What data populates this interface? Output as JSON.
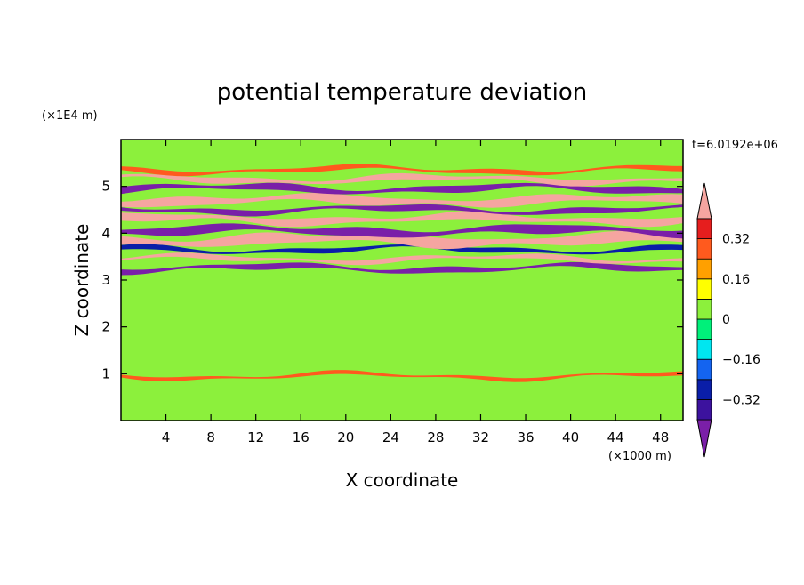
{
  "chart_data": {
    "type": "heatmap",
    "title": "potential temperature deviation",
    "xlabel": "X coordinate",
    "ylabel": "Z coordinate",
    "x_unit": "(×1000 m)",
    "y_unit": "(×1E4 m)",
    "time_label": "t=6.0192e+06",
    "xlim": [
      0,
      50
    ],
    "ylim": [
      0,
      6
    ],
    "x_ticks": [
      4,
      8,
      12,
      16,
      20,
      24,
      28,
      32,
      36,
      40,
      44,
      48
    ],
    "y_ticks": [
      1,
      2,
      3,
      4,
      5
    ],
    "grid": false,
    "colorbar": {
      "placement": "right",
      "extend": "both",
      "tick_values": [
        0.32,
        0.16,
        0,
        -0.16,
        -0.32
      ],
      "tick_labels": [
        "0.32",
        "0.16",
        "0",
        "−0.16",
        "−0.32"
      ],
      "levels": [
        -0.4,
        -0.32,
        -0.24,
        -0.16,
        -0.08,
        0,
        0.08,
        0.16,
        0.24,
        0.32,
        0.4
      ],
      "colors": [
        "#7a1fa8",
        "#3c129e",
        "#0a1ea8",
        "#1464f0",
        "#00e6f0",
        "#00f07a",
        "#8cf03c",
        "#ffff00",
        "#ffa000",
        "#ff5a1e",
        "#e61e1e",
        "#f5a5a0"
      ]
    },
    "bands": [
      {
        "z": 0.95,
        "value": 0.3,
        "thickness": 0.08
      },
      {
        "z": 3.25,
        "value": -0.42,
        "thickness": 0.12
      },
      {
        "z": 3.45,
        "value": 0.45,
        "thickness": 0.1
      },
      {
        "z": 3.65,
        "value": -0.3,
        "thickness": 0.1
      },
      {
        "z": 3.85,
        "value": 0.45,
        "thickness": 0.22
      },
      {
        "z": 4.05,
        "value": -0.45,
        "thickness": 0.18
      },
      {
        "z": 4.3,
        "value": 0.45,
        "thickness": 0.16
      },
      {
        "z": 4.5,
        "value": -0.42,
        "thickness": 0.12
      },
      {
        "z": 4.7,
        "value": 0.45,
        "thickness": 0.18
      },
      {
        "z": 4.95,
        "value": -0.45,
        "thickness": 0.14
      },
      {
        "z": 5.15,
        "value": 0.45,
        "thickness": 0.12
      },
      {
        "z": 5.35,
        "value": 0.25,
        "thickness": 0.1
      }
    ]
  }
}
